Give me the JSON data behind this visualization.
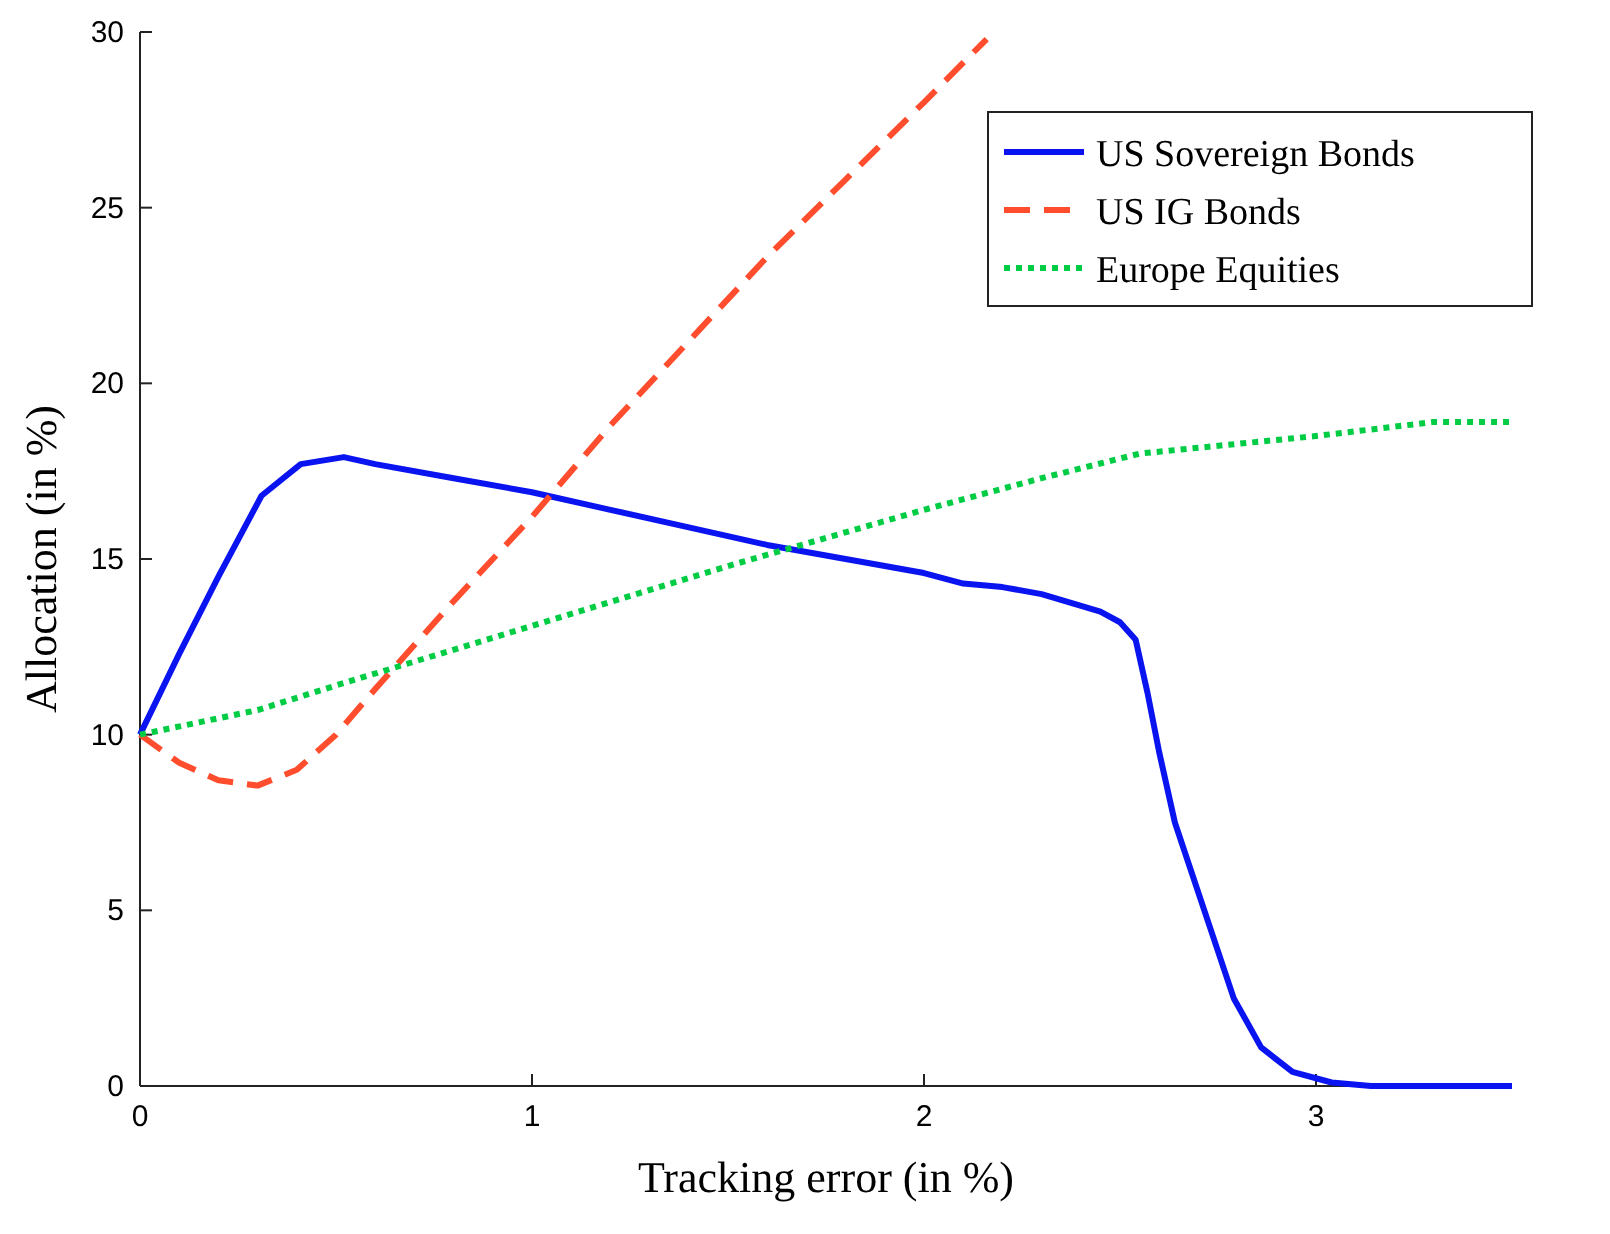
{
  "chart_data": {
    "type": "line",
    "xlabel": "Tracking error (in %)",
    "ylabel": "Allocation (in %)",
    "xlim": [
      0,
      3.5
    ],
    "ylim": [
      0,
      30
    ],
    "xticks": [
      0,
      1,
      2,
      3
    ],
    "yticks": [
      0,
      5,
      10,
      15,
      20,
      25,
      30
    ],
    "grid": false,
    "legend": "top right",
    "series": [
      {
        "name": "US Sovereign Bonds",
        "color": "#0a14f0",
        "line_style": "solid",
        "x": [
          0,
          0.1,
          0.2,
          0.31,
          0.41,
          0.52,
          0.6,
          0.8,
          1,
          1.2,
          1.4,
          1.6,
          1.8,
          2,
          2.1,
          2.2,
          2.3,
          2.45,
          2.5,
          2.54,
          2.57,
          2.6,
          2.64,
          2.73,
          2.79,
          2.86,
          2.94,
          3.04,
          3.14,
          3.5
        ],
        "values": [
          10,
          12.3,
          14.5,
          16.8,
          17.7,
          17.9,
          17.7,
          17.3,
          16.9,
          16.4,
          15.9,
          15.4,
          15,
          14.6,
          14.3,
          14.2,
          14,
          13.5,
          13.2,
          12.7,
          11.2,
          9.5,
          7.5,
          4.5,
          2.5,
          1.1,
          0.4,
          0.1,
          0,
          0
        ]
      },
      {
        "name": "US IG Bonds",
        "color": "#ff4d2e",
        "line_style": "dashed",
        "x": [
          0,
          0.1,
          0.2,
          0.3,
          0.4,
          0.5,
          0.6,
          0.8,
          1,
          1.2,
          1.4,
          1.6,
          1.8,
          2,
          2.16
        ],
        "values": [
          10,
          9.2,
          8.7,
          8.55,
          9,
          10,
          11.3,
          13.8,
          16.2,
          18.8,
          21.2,
          23.6,
          25.8,
          28,
          29.8
        ]
      },
      {
        "name": "Europe Equities",
        "color": "#00cc44",
        "line_style": "dotted",
        "x": [
          0,
          0.3,
          0.5,
          1,
          1.5,
          2,
          2.3,
          2.55,
          3,
          3.3,
          3.5
        ],
        "values": [
          10,
          10.7,
          11.4,
          13.1,
          14.8,
          16.4,
          17.3,
          18,
          18.5,
          18.9,
          18.9
        ]
      }
    ]
  }
}
